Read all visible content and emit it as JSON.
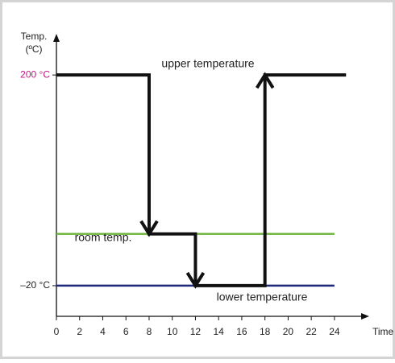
{
  "chart_data": {
    "type": "line",
    "ylabel": [
      "Temp.",
      "(ºC)"
    ],
    "xlabel": "Time (h)",
    "xlim": [
      0,
      27
    ],
    "ylim": [
      -52,
      243
    ],
    "xticks": [
      0,
      2,
      4,
      6,
      8,
      10,
      12,
      14,
      16,
      18,
      20,
      22,
      24
    ],
    "yticks": [
      {
        "value": 200,
        "label": "200 °C",
        "color": "#c0147f"
      },
      {
        "value": -20,
        "label": "–20 °C",
        "color": "#222222"
      }
    ],
    "series": [
      {
        "color": "#6bb33a",
        "width": 2.5,
        "x": [
          0,
          24
        ],
        "values": [
          34,
          34
        ]
      },
      {
        "color": "#1f2a7a",
        "width": 2.5,
        "x": [
          0,
          24
        ],
        "values": [
          -20,
          -20
        ]
      },
      {
        "color": "#111111",
        "width": 4,
        "x": [
          0,
          8,
          8,
          12,
          12,
          18,
          18,
          25
        ],
        "values": [
          200,
          200,
          34,
          34,
          -20,
          -20,
          200,
          200
        ]
      }
    ],
    "annotations": [
      "upper temperature",
      "room temp.",
      "lower temperature"
    ]
  }
}
